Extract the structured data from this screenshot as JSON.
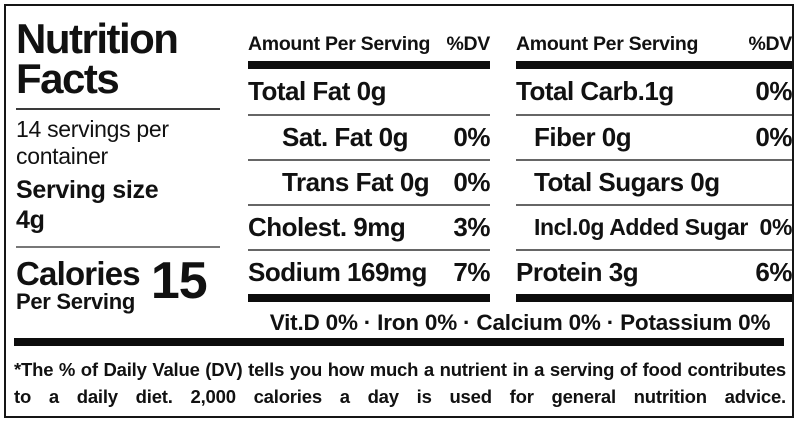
{
  "colors": {
    "ink": "#111111",
    "thin_rule": "#666666"
  },
  "left_panel": {
    "title": "Nutrition Facts",
    "servings_per_container": "14 servings per container",
    "serving_size_label": "Serving size",
    "serving_size_value": "4g",
    "calories_label": "Calories",
    "calories_value": "15",
    "calories_sub": "Per Serving"
  },
  "header": {
    "amount_per_serving": "Amount Per Serving",
    "dv": "%DV"
  },
  "mid_rows": [
    {
      "name": "Total Fat 0g",
      "dv": ""
    },
    {
      "name": "Sat. Fat 0g",
      "dv": "0%"
    },
    {
      "name": "Trans Fat 0g",
      "dv": "0%"
    },
    {
      "name": "Cholest. 9mg",
      "dv": "3%"
    },
    {
      "name": "Sodium 169mg",
      "dv": "7%"
    }
  ],
  "right_rows": [
    {
      "name": "Total Carb.1g",
      "dv": "0%"
    },
    {
      "name": "Fiber 0g",
      "dv": "0%"
    },
    {
      "name": "Total Sugars 0g",
      "dv": ""
    },
    {
      "name": "Incl.0g Added Sugar",
      "dv": "0%"
    },
    {
      "name": "Protein 3g",
      "dv": "6%"
    }
  ],
  "micronutrients": "Vit.D 0% · Iron 0% · Calcium 0% · Potassium 0%",
  "footnote": "*The % of Daily Value (DV) tells you how much a nutrient in a serving of food contributes to a daily diet. 2,000 calories a day is used for general nutrition advice."
}
